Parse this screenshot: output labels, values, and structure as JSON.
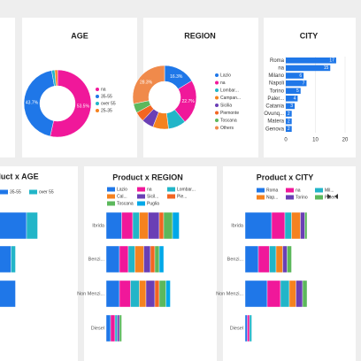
{
  "chart_data": [
    {
      "type": "donut",
      "title": "AGE",
      "categories": [
        "na",
        "35-55",
        "over 55",
        "25-35"
      ],
      "values": [
        53.5,
        43.7,
        1.5,
        1.3
      ],
      "value_labels": [
        "53.5%",
        "43.7%",
        null,
        null
      ],
      "colors": [
        "#f0189a",
        "#1f77e8",
        "#22b5c8",
        "#f5821f"
      ]
    },
    {
      "type": "donut",
      "title": "REGION",
      "categories": [
        "Lazio",
        "na",
        "Lombar...",
        "Campan...",
        "Sicilia",
        "Piemonte",
        "Toscana",
        "Others"
      ],
      "values": [
        16.3,
        22.7,
        9,
        8,
        6,
        5,
        4.7,
        28.3
      ],
      "value_labels": [
        "16.3%",
        "22.7%",
        null,
        null,
        null,
        null,
        null,
        "28.3%"
      ],
      "colors": [
        "#1f77e8",
        "#f0189a",
        "#22b5c8",
        "#f5821f",
        "#6a3fb5",
        "#f26522",
        "#5cb85c",
        "#f08a4b"
      ]
    },
    {
      "type": "hbar",
      "title": "CITY",
      "categories": [
        "Roma",
        "na",
        "Milano",
        "Napoli",
        "Torino",
        "Paler...",
        "Catania",
        "Ovunq...",
        "Matera",
        "Genova"
      ],
      "values": [
        17,
        15,
        6,
        7,
        5,
        4,
        3,
        2,
        2,
        2
      ],
      "color": "#1f77e8",
      "xlim": [
        0,
        20
      ],
      "xticks": [
        0,
        10,
        20
      ]
    },
    {
      "type": "stacked",
      "title": "Product x AGE",
      "categories": [
        null,
        null,
        null,
        null
      ],
      "series": [
        {
          "name": "35-55",
          "color": "#1f77e8",
          "values": [
            40,
            33,
            35,
            0
          ]
        },
        {
          "name": "over 55",
          "color": "#22b5c8",
          "values": [
            5,
            2,
            0,
            0
          ]
        }
      ]
    },
    {
      "type": "stacked",
      "title": "Product x REGION",
      "categories": [
        "Ibrida",
        "Benzi...",
        "Non Menzi...",
        "Diesel"
      ],
      "series": [
        {
          "name": "Lazio",
          "color": "#1f77e8",
          "values": [
            7,
            6,
            6,
            2
          ]
        },
        {
          "name": "na",
          "color": "#f0189a",
          "values": [
            5,
            4,
            5,
            2
          ]
        },
        {
          "name": "Lombar...",
          "color": "#22b5c8",
          "values": [
            3,
            3,
            4,
            1
          ]
        },
        {
          "name": "Cal...",
          "color": "#f5821f",
          "values": [
            4,
            4,
            3,
            0
          ]
        },
        {
          "name": "Sicil...",
          "color": "#6a3fb5",
          "values": [
            5,
            3,
            4,
            1
          ]
        },
        {
          "name": "Pie...",
          "color": "#f26522",
          "values": [
            2,
            2,
            2,
            0
          ]
        },
        {
          "name": "Toscana",
          "color": "#5cb85c",
          "values": [
            4,
            2,
            3,
            1
          ]
        },
        {
          "name": "Puglia",
          "color": "#00a8e8",
          "values": [
            3,
            2,
            2,
            0
          ]
        }
      ]
    },
    {
      "type": "stacked",
      "title": "Product x CITY",
      "categories": [
        "Ibrida",
        "Benzi...",
        "Non Menzi...",
        "Diesel"
      ],
      "series": [
        {
          "name": "Roma",
          "color": "#1f77e8",
          "values": [
            12,
            6,
            10,
            1
          ]
        },
        {
          "name": "na",
          "color": "#f0189a",
          "values": [
            6,
            5,
            6,
            1
          ]
        },
        {
          "name": "Mil...",
          "color": "#22b5c8",
          "values": [
            3,
            3,
            4,
            1
          ]
        },
        {
          "name": "Nap...",
          "color": "#f5821f",
          "values": [
            4,
            3,
            3,
            0
          ]
        },
        {
          "name": "Torino",
          "color": "#6a3fb5",
          "values": [
            2,
            2,
            3,
            0
          ]
        },
        {
          "name": "Paler...",
          "color": "#5cb85c",
          "values": [
            1,
            2,
            2,
            0
          ]
        }
      ]
    }
  ]
}
